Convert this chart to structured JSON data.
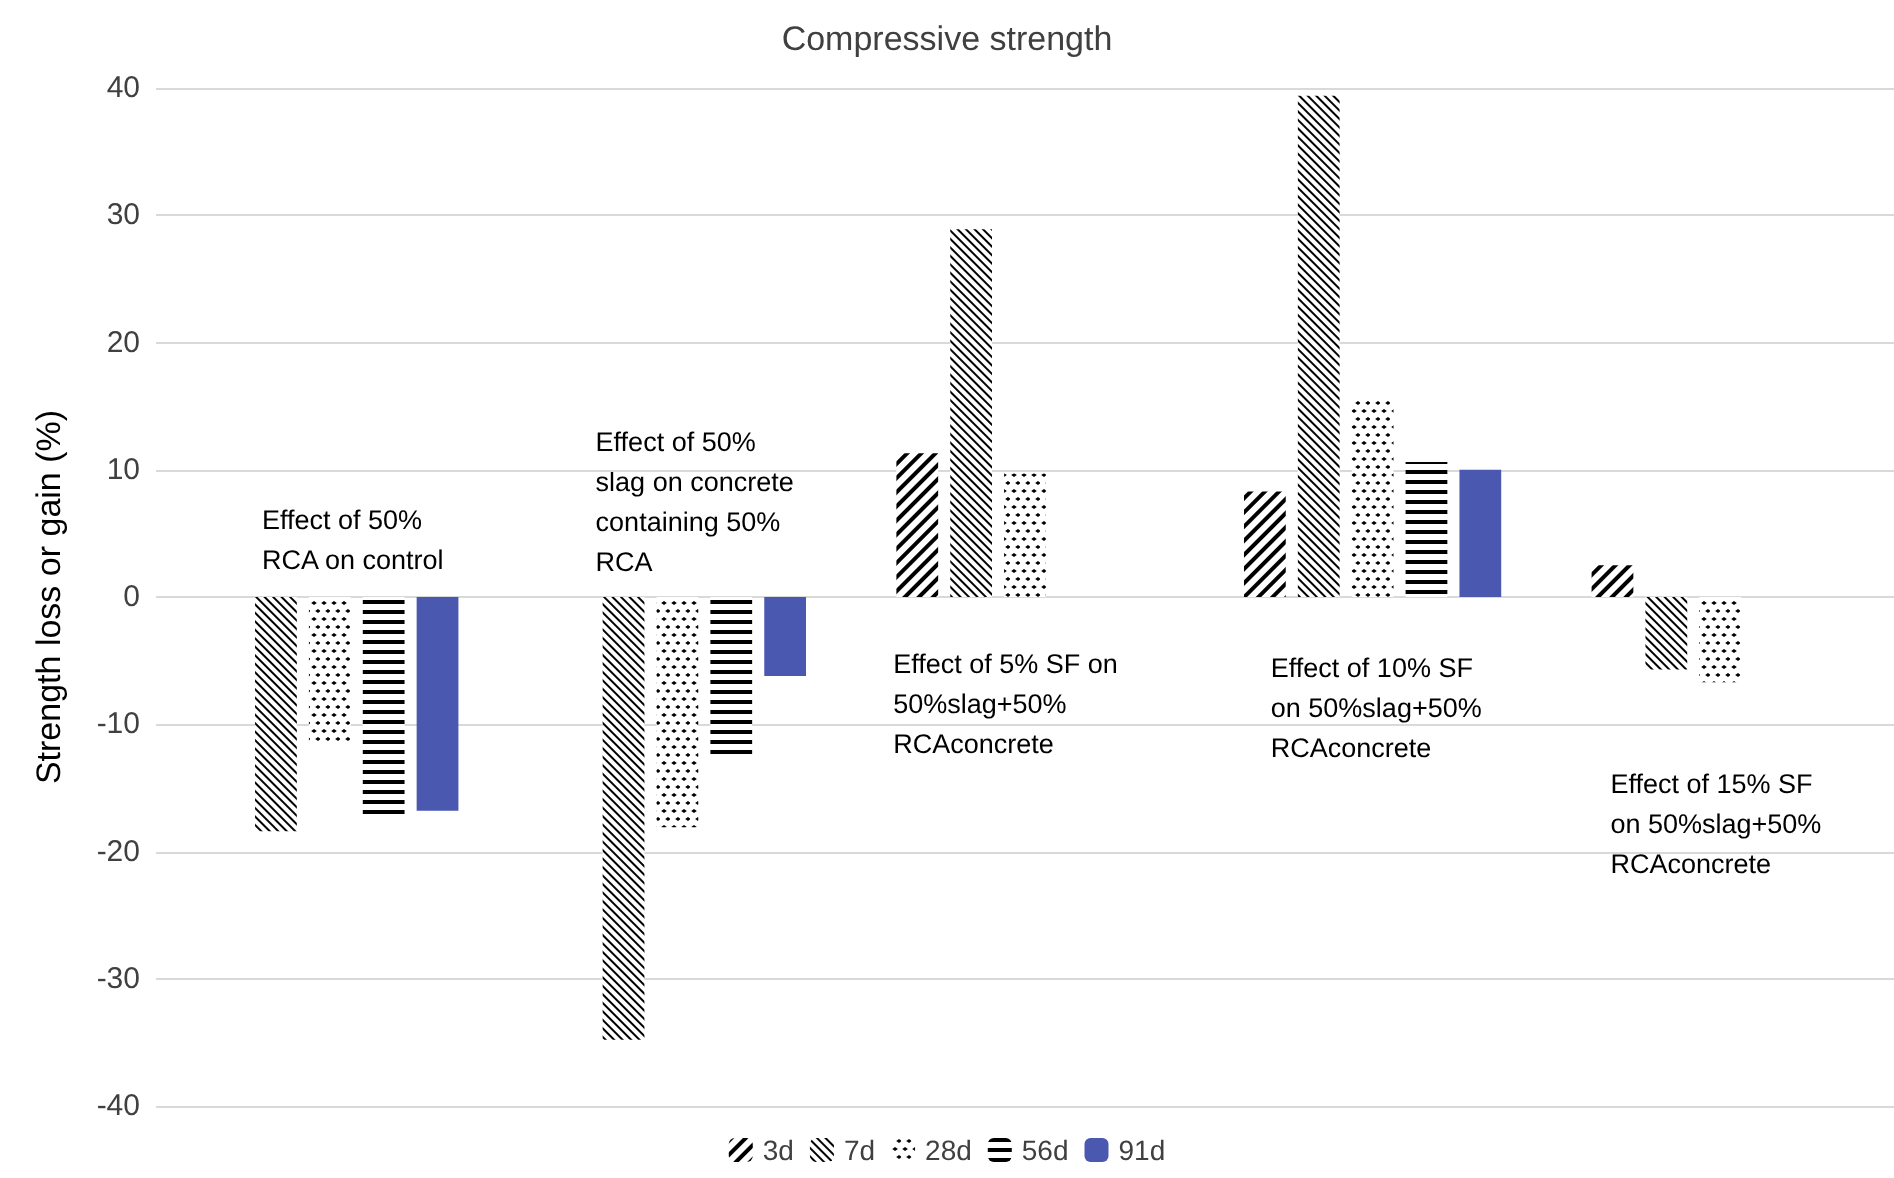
{
  "chart_data": {
    "type": "bar",
    "title": "Compressive strength",
    "ylabel": "Strength loss or gain (%)",
    "categories": [
      null,
      null,
      null,
      null,
      null
    ],
    "series": [
      {
        "name": "3d",
        "color": "#000000",
        "values": [
          null,
          null,
          11.3,
          8.3,
          2.5
        ]
      },
      {
        "name": "7d",
        "color": "#000000",
        "values": [
          -18.4,
          -34.8,
          28.9,
          39.4,
          -5.7
        ]
      },
      {
        "name": "28d",
        "color": "#000000",
        "values": [
          -11.4,
          -18.1,
          9.7,
          15.7,
          -6.7
        ]
      },
      {
        "name": "56d",
        "color": "#000000",
        "values": [
          -17.3,
          -12.7,
          null,
          10.6,
          null
        ]
      },
      {
        "name": "91d",
        "color": "#4a58b0",
        "values": [
          -16.8,
          -6.2,
          null,
          10.0,
          null
        ]
      }
    ],
    "ylim": [
      -40,
      40
    ],
    "yticks": [
      -40,
      -30,
      -20,
      -10,
      0,
      10,
      20,
      30,
      40
    ],
    "grid": "y",
    "legend": "bottom",
    "annotations": [
      "Effect of 50%\nRCA on control",
      "Effect of 50%\nslag on concrete\ncontaining 50%\nRCA",
      "Effect of 5% SF on\n50%slag+50%\nRCAconcrete",
      "Effect of 10% SF\non 50%slag+50%\nRCAconcrete",
      "Effect of 15% SF\non 50%slag+50%\nRCAconcrete"
    ]
  }
}
